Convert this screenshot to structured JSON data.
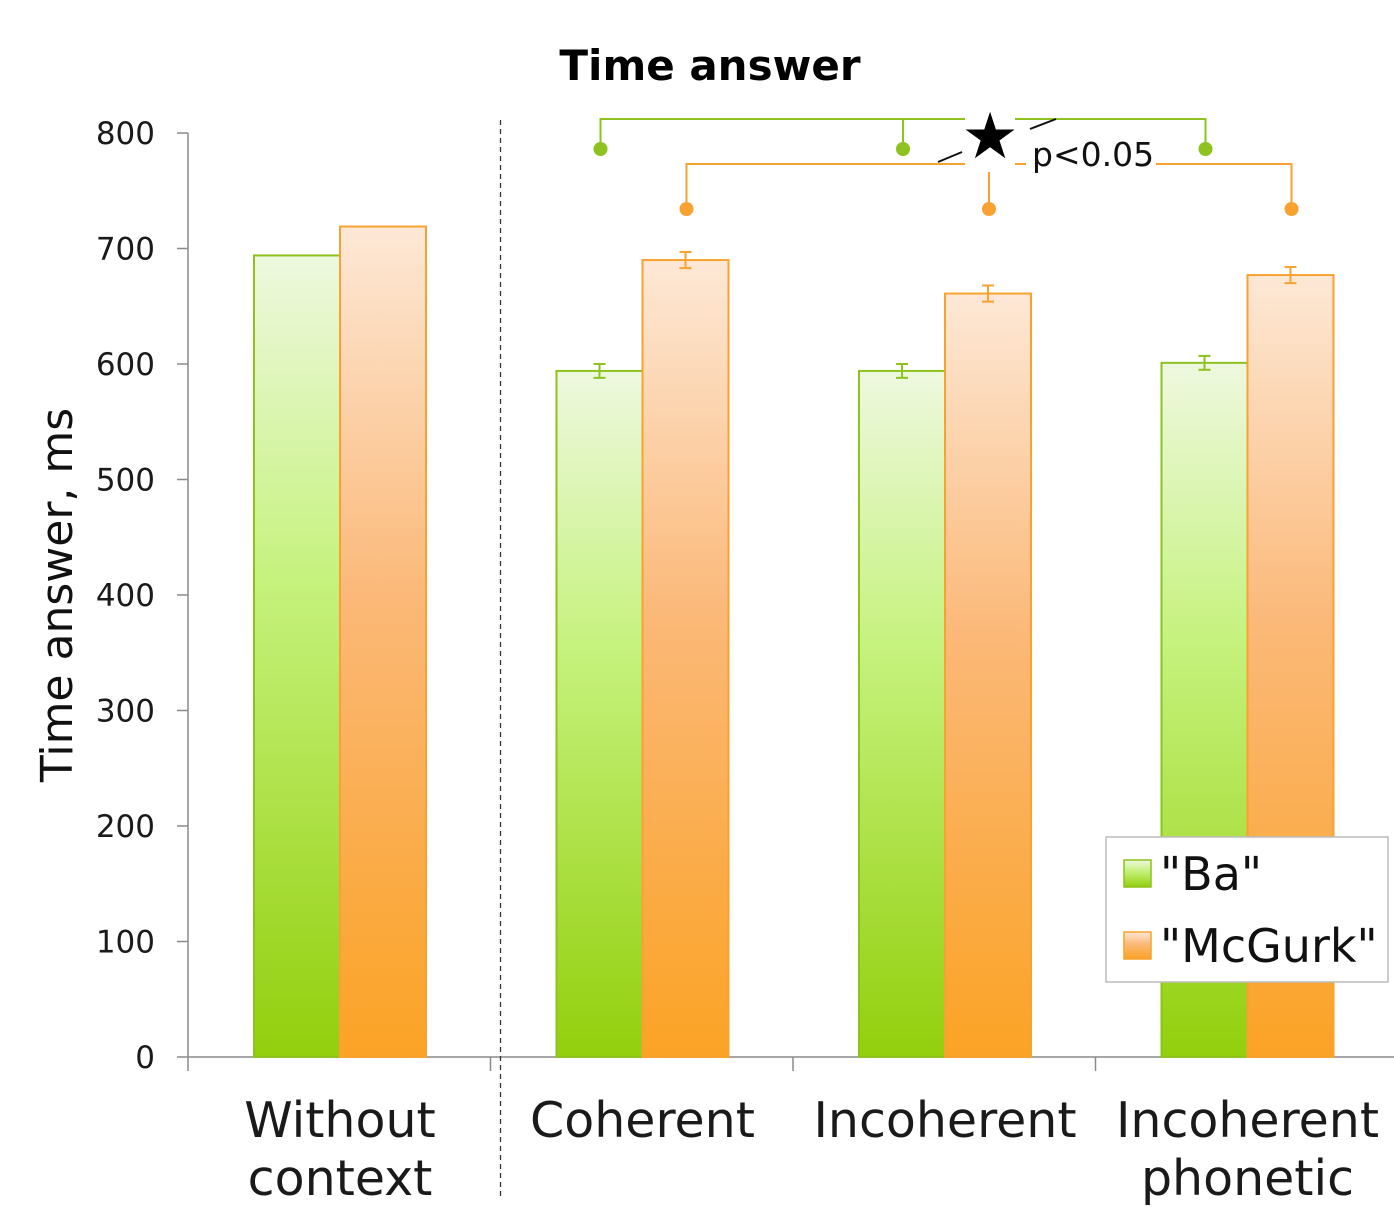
{
  "chart_data": {
    "type": "bar",
    "title": "Time answer",
    "xlabel": "",
    "ylabel": "Time answer, ms",
    "ylim": [
      0,
      800
    ],
    "yticks": [
      0,
      100,
      200,
      300,
      400,
      500,
      600,
      700,
      800
    ],
    "categories": [
      [
        "Without",
        "context"
      ],
      [
        "Coherent"
      ],
      [
        "Incoherent"
      ],
      [
        "Incoherent",
        "phonetic"
      ]
    ],
    "series": [
      {
        "name": "\"Ba\"",
        "color": "#8dc21f",
        "values": [
          694,
          594,
          594,
          601
        ],
        "errors": [
          null,
          6,
          6,
          6
        ]
      },
      {
        "name": "\"McGurk\"",
        "color": "#f7a231",
        "values": [
          719,
          690,
          661,
          677
        ],
        "errors": [
          null,
          7,
          7,
          7
        ]
      }
    ],
    "separator_after_category": 0,
    "legend_position": "bottom-right",
    "grid": false,
    "significance": {
      "label": "p<0.05",
      "symbol": "★",
      "brackets": [
        {
          "series": 0,
          "categories": [
            1,
            2,
            3
          ]
        },
        {
          "series": 1,
          "categories": [
            1,
            2,
            3
          ]
        }
      ]
    }
  }
}
